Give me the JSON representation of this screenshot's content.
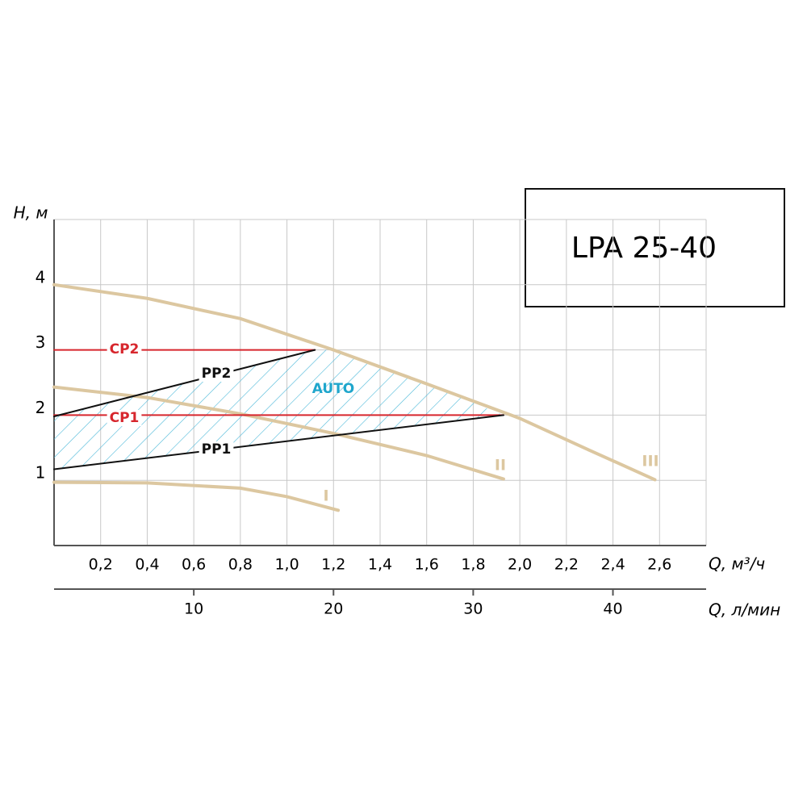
{
  "chart_data": {
    "type": "line",
    "title": "LPA 25-40",
    "ylabel": "H, м",
    "xlabel": "Q, м³/ч",
    "x2label": "Q, л/мин",
    "xlim": [
      0,
      2.8
    ],
    "ylim": [
      0,
      5
    ],
    "x2lim": [
      0,
      46.67
    ],
    "grid": true,
    "xticks": [
      {
        "value": 0.2,
        "label": "0,2"
      },
      {
        "value": 0.4,
        "label": "0,4"
      },
      {
        "value": 0.6,
        "label": "0,6"
      },
      {
        "value": 0.8,
        "label": "0,8"
      },
      {
        "value": 1.0,
        "label": "1,0"
      },
      {
        "value": 1.2,
        "label": "1,2"
      },
      {
        "value": 1.4,
        "label": "1,4"
      },
      {
        "value": 1.6,
        "label": "1,6"
      },
      {
        "value": 1.8,
        "label": "1,8"
      },
      {
        "value": 2.0,
        "label": "2,0"
      },
      {
        "value": 2.2,
        "label": "2,2"
      },
      {
        "value": 2.4,
        "label": "2,4"
      },
      {
        "value": 2.6,
        "label": "2,6"
      }
    ],
    "yticks": [
      1,
      2,
      3,
      4
    ],
    "x2ticks": [
      10,
      20,
      30,
      40
    ],
    "zone_label": "AUTO",
    "zone_color": "#1fa6cc",
    "series": [
      {
        "name": "I",
        "color": "#dcc7a0",
        "x": [
          0,
          0.4,
          0.8,
          1.0,
          1.22
        ],
        "values": [
          0.97,
          0.96,
          0.88,
          0.75,
          0.54
        ]
      },
      {
        "name": "II",
        "color": "#dcc7a0",
        "x": [
          0,
          0.4,
          0.8,
          1.2,
          1.6,
          1.93
        ],
        "values": [
          2.43,
          2.27,
          2.02,
          1.72,
          1.38,
          1.02
        ]
      },
      {
        "name": "III",
        "color": "#dcc7a0",
        "x": [
          0,
          0.4,
          0.8,
          1.2,
          1.6,
          2.0,
          2.3,
          2.58
        ],
        "values": [
          4.0,
          3.79,
          3.48,
          3.0,
          2.48,
          1.95,
          1.46,
          1.01
        ]
      },
      {
        "name": "CP1",
        "color": "#d7262d",
        "x": [
          0,
          1.93
        ],
        "values": [
          2.0,
          2.0
        ]
      },
      {
        "name": "CP2",
        "color": "#d7262d",
        "x": [
          0,
          1.12
        ],
        "values": [
          3.0,
          3.0
        ]
      },
      {
        "name": "PP1",
        "color": "#111111",
        "x": [
          0,
          1.93
        ],
        "values": [
          1.17,
          2.0
        ]
      },
      {
        "name": "PP2",
        "color": "#111111",
        "x": [
          0,
          1.12
        ],
        "values": [
          1.98,
          3.0
        ]
      }
    ]
  }
}
